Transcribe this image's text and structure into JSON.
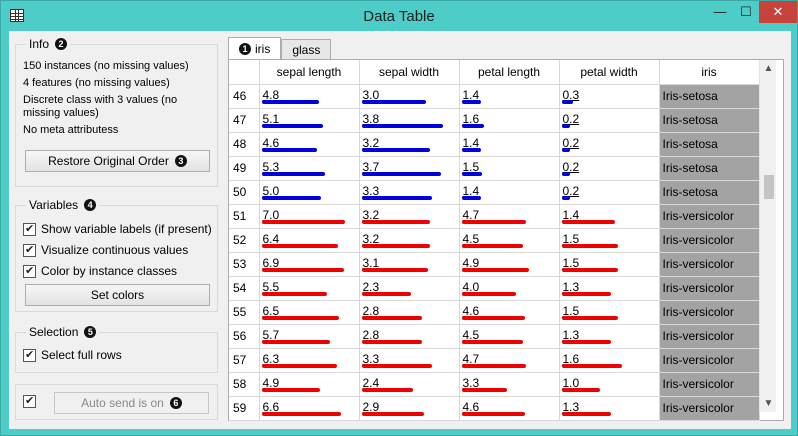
{
  "window": {
    "title": "Data Table",
    "minimize": "—",
    "maximize": "☐",
    "close": "✕"
  },
  "info": {
    "title": "Info",
    "badge": "2",
    "lines": [
      "150 instances (no missing values)",
      "4 features (no missing values)",
      "Discrete class with 3 values (no missing values)",
      "No meta attributess"
    ],
    "restore_label": "Restore Original Order",
    "restore_badge": "3"
  },
  "variables": {
    "title": "Variables",
    "badge": "4",
    "options": [
      {
        "label": "Show variable labels (if present)",
        "checked": true
      },
      {
        "label": "Visualize continuous values",
        "checked": true
      },
      {
        "label": "Color by instance classes",
        "checked": true
      }
    ],
    "set_colors_label": "Set colors"
  },
  "selection": {
    "title": "Selection",
    "badge": "5",
    "option": "Select full rows"
  },
  "send": {
    "label": "Auto send is on",
    "badge": "6"
  },
  "tabs": [
    {
      "label": "iris",
      "badge": "1",
      "active": true
    },
    {
      "label": "glass",
      "active": false
    }
  ],
  "table": {
    "headers": [
      "",
      "sepal length",
      "sepal width",
      "petal length",
      "petal width",
      "iris"
    ],
    "max": [
      7.9,
      4.4,
      6.9,
      2.5
    ],
    "colors": {
      "setosa": "#0000dd",
      "versicolor": "#ee0000"
    },
    "rows": [
      {
        "idx": "46",
        "v": [
          "4.8",
          "3.0",
          "1.4",
          "0.3"
        ],
        "cls": "Iris-setosa",
        "color": "#0000dd"
      },
      {
        "idx": "47",
        "v": [
          "5.1",
          "3.8",
          "1.6",
          "0.2"
        ],
        "cls": "Iris-setosa",
        "color": "#0000dd"
      },
      {
        "idx": "48",
        "v": [
          "4.6",
          "3.2",
          "1.4",
          "0.2"
        ],
        "cls": "Iris-setosa",
        "color": "#0000dd"
      },
      {
        "idx": "49",
        "v": [
          "5.3",
          "3.7",
          "1.5",
          "0.2"
        ],
        "cls": "Iris-setosa",
        "color": "#0000dd"
      },
      {
        "idx": "50",
        "v": [
          "5.0",
          "3.3",
          "1.4",
          "0.2"
        ],
        "cls": "Iris-setosa",
        "color": "#0000dd"
      },
      {
        "idx": "51",
        "v": [
          "7.0",
          "3.2",
          "4.7",
          "1.4"
        ],
        "cls": "Iris-versicolor",
        "color": "#ee0000"
      },
      {
        "idx": "52",
        "v": [
          "6.4",
          "3.2",
          "4.5",
          "1.5"
        ],
        "cls": "Iris-versicolor",
        "color": "#ee0000"
      },
      {
        "idx": "53",
        "v": [
          "6.9",
          "3.1",
          "4.9",
          "1.5"
        ],
        "cls": "Iris-versicolor",
        "color": "#ee0000"
      },
      {
        "idx": "54",
        "v": [
          "5.5",
          "2.3",
          "4.0",
          "1.3"
        ],
        "cls": "Iris-versicolor",
        "color": "#ee0000"
      },
      {
        "idx": "55",
        "v": [
          "6.5",
          "2.8",
          "4.6",
          "1.5"
        ],
        "cls": "Iris-versicolor",
        "color": "#ee0000"
      },
      {
        "idx": "56",
        "v": [
          "5.7",
          "2.8",
          "4.5",
          "1.3"
        ],
        "cls": "Iris-versicolor",
        "color": "#ee0000"
      },
      {
        "idx": "57",
        "v": [
          "6.3",
          "3.3",
          "4.7",
          "1.6"
        ],
        "cls": "Iris-versicolor",
        "color": "#ee0000"
      },
      {
        "idx": "58",
        "v": [
          "4.9",
          "2.4",
          "3.3",
          "1.0"
        ],
        "cls": "Iris-versicolor",
        "color": "#ee0000"
      },
      {
        "idx": "59",
        "v": [
          "6.6",
          "2.9",
          "4.6",
          "1.3"
        ],
        "cls": "Iris-versicolor",
        "color": "#ee0000"
      }
    ]
  }
}
